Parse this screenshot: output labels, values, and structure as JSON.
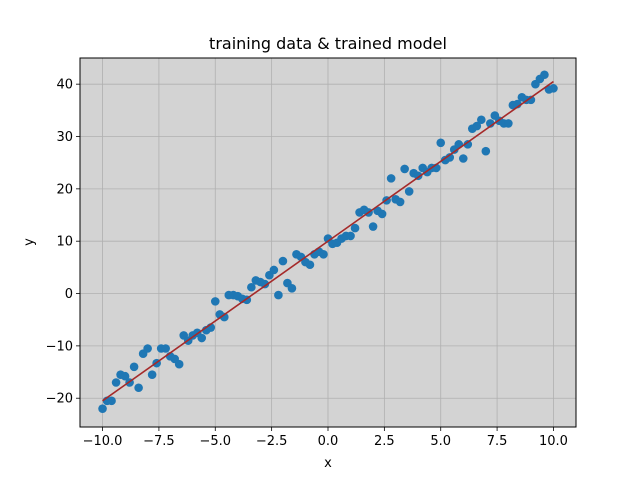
{
  "chart_data": {
    "type": "scatter",
    "title": "training data & trained model",
    "xlabel": "x",
    "ylabel": "y",
    "xlim": [
      -11,
      11
    ],
    "ylim": [
      -25.5,
      45
    ],
    "xticks": [
      -10,
      -7.5,
      -5,
      -2.5,
      0,
      2.5,
      5,
      7.5,
      10
    ],
    "xtick_labels": [
      "−10.0",
      "−7.5",
      "−5.0",
      "−2.5",
      "0.0",
      "2.5",
      "5.0",
      "7.5",
      "10.0"
    ],
    "yticks": [
      -20,
      -10,
      0,
      10,
      20,
      30,
      40
    ],
    "ytick_labels": [
      "−20",
      "−10",
      "0",
      "10",
      "20",
      "30",
      "40"
    ],
    "grid": true,
    "plot_background": "#d3d3d3",
    "point_color": "#1f77b4",
    "line_color": "#a52a2a",
    "series": [
      {
        "type": "scatter",
        "points": [
          [
            -10.0,
            -22.0
          ],
          [
            -9.8,
            -20.5
          ],
          [
            -9.6,
            -20.5
          ],
          [
            -9.4,
            -17.0
          ],
          [
            -9.2,
            -15.5
          ],
          [
            -9.0,
            -15.8
          ],
          [
            -8.8,
            -17.0
          ],
          [
            -8.6,
            -14.0
          ],
          [
            -8.4,
            -18.0
          ],
          [
            -8.2,
            -11.5
          ],
          [
            -8.0,
            -10.5
          ],
          [
            -7.8,
            -15.5
          ],
          [
            -7.6,
            -13.3
          ],
          [
            -7.4,
            -10.5
          ],
          [
            -7.2,
            -10.5
          ],
          [
            -7.0,
            -12.0
          ],
          [
            -6.8,
            -12.5
          ],
          [
            -6.6,
            -13.5
          ],
          [
            -6.4,
            -8.0
          ],
          [
            -6.2,
            -9.0
          ],
          [
            -6.0,
            -8.0
          ],
          [
            -5.8,
            -7.5
          ],
          [
            -5.6,
            -8.5
          ],
          [
            -5.4,
            -7.0
          ],
          [
            -5.2,
            -6.5
          ],
          [
            -5.0,
            -1.5
          ],
          [
            -4.8,
            -4.0
          ],
          [
            -4.6,
            -4.5
          ],
          [
            -4.4,
            -0.3
          ],
          [
            -4.2,
            -0.3
          ],
          [
            -4.0,
            -0.5
          ],
          [
            -3.8,
            -1.0
          ],
          [
            -3.6,
            -1.2
          ],
          [
            -3.4,
            1.2
          ],
          [
            -3.2,
            2.5
          ],
          [
            -3.0,
            2.2
          ],
          [
            -2.8,
            1.8
          ],
          [
            -2.6,
            3.5
          ],
          [
            -2.4,
            4.5
          ],
          [
            -2.2,
            -0.3
          ],
          [
            -2.0,
            6.2
          ],
          [
            -1.8,
            2.0
          ],
          [
            -1.6,
            1.0
          ],
          [
            -1.4,
            7.5
          ],
          [
            -1.2,
            7.0
          ],
          [
            -1.0,
            6.0
          ],
          [
            -0.8,
            5.5
          ],
          [
            -0.6,
            7.5
          ],
          [
            -0.4,
            8.0
          ],
          [
            -0.2,
            7.5
          ],
          [
            0.0,
            10.5
          ],
          [
            0.2,
            9.5
          ],
          [
            0.4,
            9.7
          ],
          [
            0.6,
            10.5
          ],
          [
            0.8,
            11.0
          ],
          [
            1.0,
            11.0
          ],
          [
            1.2,
            12.5
          ],
          [
            1.4,
            15.5
          ],
          [
            1.6,
            16.0
          ],
          [
            1.8,
            15.5
          ],
          [
            2.0,
            12.8
          ],
          [
            2.2,
            15.8
          ],
          [
            2.4,
            15.2
          ],
          [
            2.6,
            17.8
          ],
          [
            2.8,
            22.0
          ],
          [
            3.0,
            18.0
          ],
          [
            3.2,
            17.5
          ],
          [
            3.4,
            23.8
          ],
          [
            3.6,
            19.5
          ],
          [
            3.8,
            23.0
          ],
          [
            4.0,
            22.5
          ],
          [
            4.2,
            24.0
          ],
          [
            4.4,
            23.2
          ],
          [
            4.6,
            24.0
          ],
          [
            4.8,
            24.0
          ],
          [
            5.0,
            28.8
          ],
          [
            5.2,
            25.5
          ],
          [
            5.4,
            26.0
          ],
          [
            5.6,
            27.5
          ],
          [
            5.8,
            28.5
          ],
          [
            6.0,
            25.8
          ],
          [
            6.2,
            28.5
          ],
          [
            6.4,
            31.5
          ],
          [
            6.6,
            32.0
          ],
          [
            6.8,
            33.2
          ],
          [
            7.0,
            27.2
          ],
          [
            7.2,
            32.5
          ],
          [
            7.4,
            34.0
          ],
          [
            7.6,
            33.0
          ],
          [
            7.8,
            32.5
          ],
          [
            8.0,
            32.5
          ],
          [
            8.2,
            36.0
          ],
          [
            8.4,
            36.2
          ],
          [
            8.6,
            37.5
          ],
          [
            8.8,
            37.0
          ],
          [
            9.0,
            37.0
          ],
          [
            9.2,
            40.0
          ],
          [
            9.4,
            41.0
          ],
          [
            9.6,
            41.8
          ],
          [
            9.8,
            39.0
          ],
          [
            10.0,
            39.2
          ]
        ]
      },
      {
        "type": "line",
        "points": [
          [
            -10.0,
            -20.5
          ],
          [
            10.0,
            40.5
          ]
        ]
      }
    ]
  }
}
